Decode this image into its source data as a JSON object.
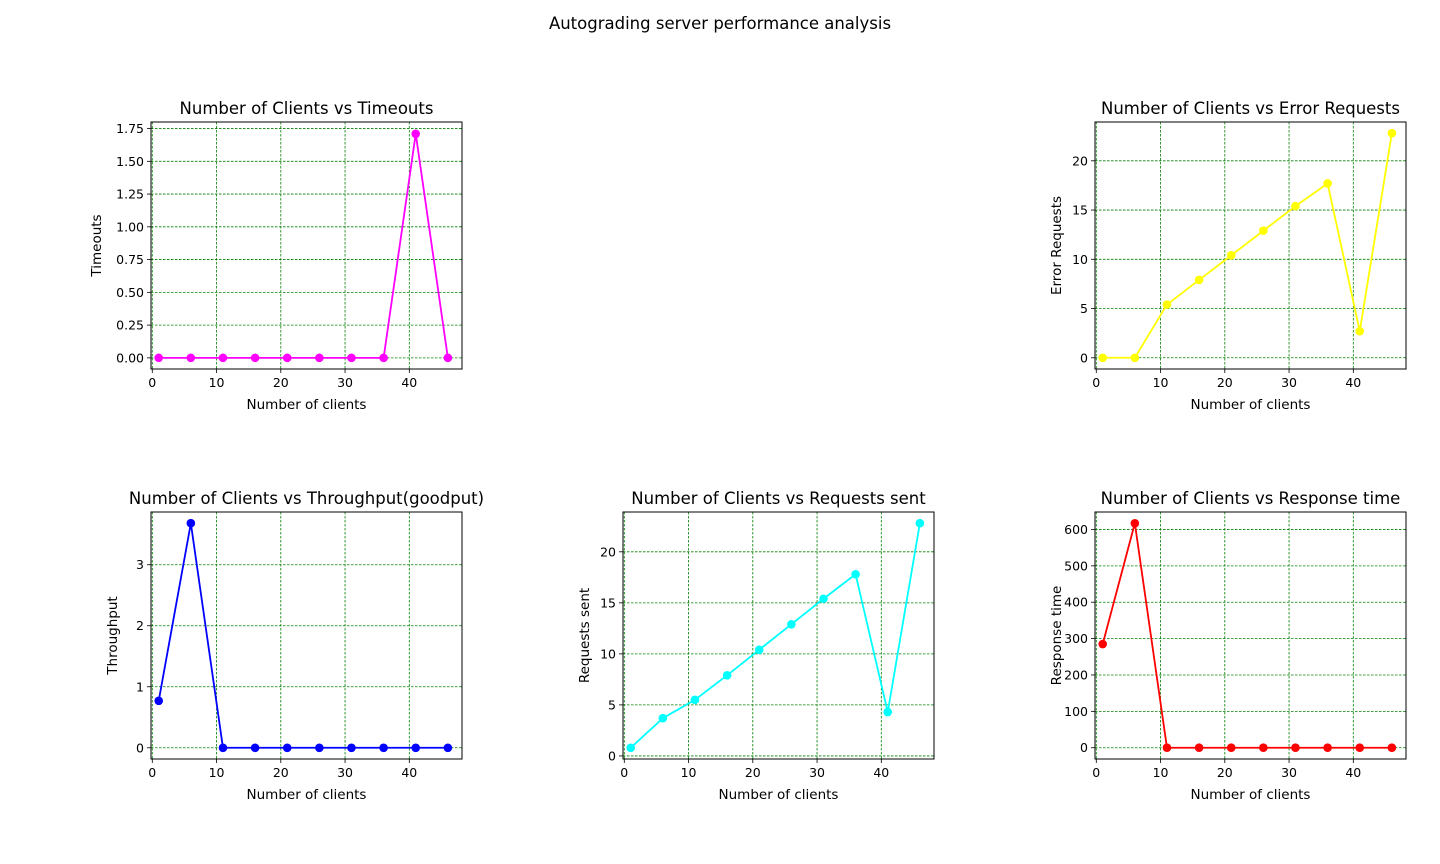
{
  "suptitle": "Autograding server performance analysis",
  "chart_data": [
    {
      "type": "line",
      "title": "Number of Clients vs Timeouts",
      "xlabel": "Number of clients",
      "ylabel": "Timeouts",
      "color": "#ff00ff",
      "grid": true,
      "x": [
        1,
        6,
        11,
        16,
        21,
        26,
        31,
        36,
        41,
        46
      ],
      "values": [
        0,
        0,
        0,
        0,
        0,
        0,
        0,
        0,
        1.71,
        0
      ],
      "xlim": [
        -0.2,
        48.2
      ],
      "ylim": [
        -0.085,
        1.8
      ],
      "xticks": [
        0,
        10,
        20,
        30,
        40
      ],
      "yticks": [
        0,
        0.25,
        0.5,
        0.75,
        1.0,
        1.25,
        1.5,
        1.75
      ],
      "ytick_labels": [
        "0.00",
        "0.25",
        "0.50",
        "0.75",
        "1.00",
        "1.25",
        "1.50",
        "1.75"
      ]
    },
    {
      "type": "line",
      "title": "Number of Clients vs Error Requests",
      "xlabel": "Number of clients",
      "ylabel": "Error Requests",
      "color": "#ffff00",
      "grid": true,
      "x": [
        1,
        6,
        11,
        16,
        21,
        26,
        31,
        36,
        41,
        46
      ],
      "values": [
        0,
        0,
        5.4,
        7.9,
        10.4,
        12.9,
        15.4,
        17.7,
        2.7,
        22.8
      ],
      "xlim": [
        -0.2,
        48.2
      ],
      "ylim": [
        -1.14,
        23.94
      ],
      "xticks": [
        0,
        10,
        20,
        30,
        40
      ],
      "yticks": [
        0,
        5,
        10,
        15,
        20
      ],
      "ytick_labels": [
        "0",
        "5",
        "10",
        "15",
        "20"
      ]
    },
    {
      "type": "line",
      "title": "Number of Clients vs Throughput(goodput)",
      "xlabel": "Number of clients",
      "ylabel": "Throughput",
      "color": "#0000ff",
      "grid": true,
      "x": [
        1,
        6,
        11,
        16,
        21,
        26,
        31,
        36,
        41,
        46
      ],
      "values": [
        0.77,
        3.68,
        0,
        0,
        0,
        0,
        0,
        0,
        0,
        0
      ],
      "xlim": [
        -0.2,
        48.2
      ],
      "ylim": [
        -0.184,
        3.864
      ],
      "xticks": [
        0,
        10,
        20,
        30,
        40
      ],
      "yticks": [
        0,
        1,
        2,
        3
      ],
      "ytick_labels": [
        "0",
        "1",
        "2",
        "3"
      ]
    },
    {
      "type": "line",
      "title": "Number of Clients vs Requests sent",
      "xlabel": "Number of clients",
      "ylabel": "Requests sent",
      "color": "#00ffff",
      "grid": true,
      "x": [
        1,
        6,
        11,
        16,
        21,
        26,
        31,
        36,
        41,
        46
      ],
      "values": [
        0.8,
        3.7,
        5.5,
        7.9,
        10.4,
        12.9,
        15.4,
        17.8,
        4.3,
        22.8
      ],
      "xlim": [
        -0.2,
        48.2
      ],
      "ylim": [
        -0.3,
        23.9
      ],
      "xticks": [
        0,
        10,
        20,
        30,
        40
      ],
      "yticks": [
        0,
        5,
        10,
        15,
        20
      ],
      "ytick_labels": [
        "0",
        "5",
        "10",
        "15",
        "20"
      ]
    },
    {
      "type": "line",
      "title": "Number of Clients vs Response time",
      "xlabel": "Number of clients",
      "ylabel": "Response time",
      "color": "#ff0000",
      "grid": true,
      "x": [
        1,
        6,
        11,
        16,
        21,
        26,
        31,
        36,
        41,
        46
      ],
      "values": [
        285,
        617,
        0,
        0,
        0,
        0,
        0,
        0,
        0,
        0
      ],
      "xlim": [
        -0.2,
        48.2
      ],
      "ylim": [
        -31,
        648
      ],
      "xticks": [
        0,
        10,
        20,
        30,
        40
      ],
      "yticks": [
        0,
        100,
        200,
        300,
        400,
        500,
        600
      ],
      "ytick_labels": [
        "0",
        "100",
        "200",
        "300",
        "400",
        "500",
        "600"
      ]
    }
  ]
}
